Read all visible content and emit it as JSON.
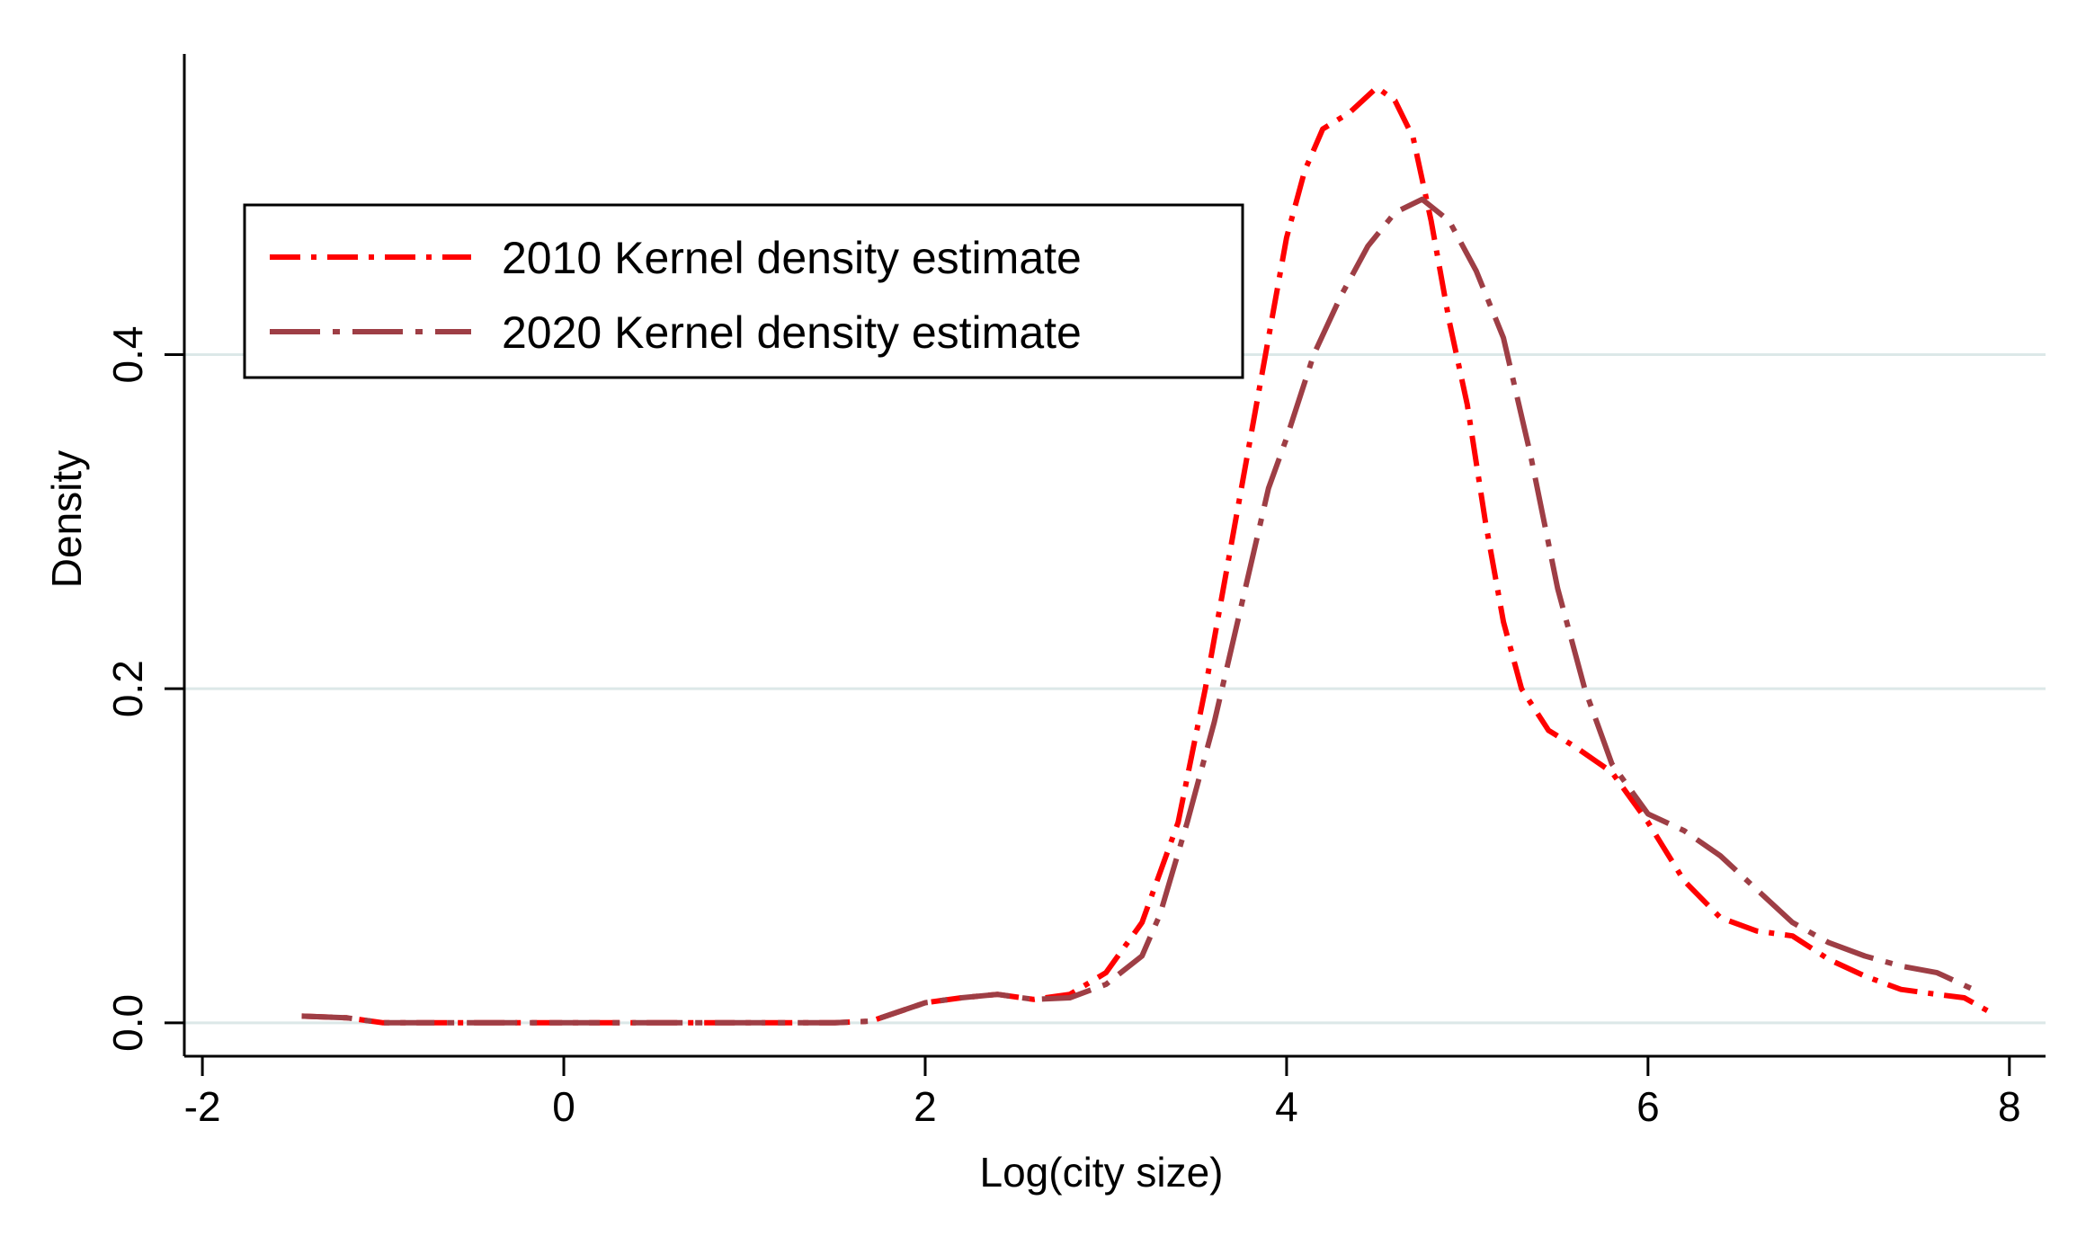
{
  "colors": {
    "background": "#ffffff",
    "gridline": "#dce8e8",
    "axis": "#000000",
    "series_2010": "#ff0000",
    "series_2020": "#9e3e45"
  },
  "chart_data": {
    "type": "line",
    "title": "",
    "xlabel": "Log(city size)",
    "ylabel": "Density",
    "xlim": [
      -2.1,
      8.2
    ],
    "ylim": [
      -0.02,
      0.58
    ],
    "xticks": [
      -2,
      0,
      2,
      4,
      6,
      8
    ],
    "xtick_labels": [
      "-2",
      "0",
      "2",
      "4",
      "6",
      "8"
    ],
    "yticks": [
      0,
      0.2,
      0.4
    ],
    "ytick_labels": [
      "0.0",
      "0.2",
      "0.4"
    ],
    "grid": "horizontal",
    "legend_position": "top-left",
    "series": [
      {
        "name": "2010 Kernel density estimate",
        "style": "dash-dot",
        "points": [
          [
            -1.45,
            0.004
          ],
          [
            -1.2,
            0.003
          ],
          [
            -1.0,
            0.0
          ],
          [
            -0.5,
            0.0
          ],
          [
            0.0,
            0.0
          ],
          [
            0.5,
            0.0
          ],
          [
            1.0,
            0.0
          ],
          [
            1.5,
            0.0
          ],
          [
            1.7,
            0.001
          ],
          [
            2.0,
            0.012
          ],
          [
            2.2,
            0.015
          ],
          [
            2.4,
            0.017
          ],
          [
            2.6,
            0.014
          ],
          [
            2.8,
            0.017
          ],
          [
            3.0,
            0.03
          ],
          [
            3.2,
            0.06
          ],
          [
            3.4,
            0.12
          ],
          [
            3.55,
            0.2
          ],
          [
            3.7,
            0.29
          ],
          [
            3.8,
            0.35
          ],
          [
            3.9,
            0.41
          ],
          [
            4.0,
            0.47
          ],
          [
            4.1,
            0.51
          ],
          [
            4.2,
            0.535
          ],
          [
            4.35,
            0.545
          ],
          [
            4.5,
            0.56
          ],
          [
            4.6,
            0.552
          ],
          [
            4.7,
            0.53
          ],
          [
            4.8,
            0.48
          ],
          [
            4.9,
            0.42
          ],
          [
            5.0,
            0.37
          ],
          [
            5.1,
            0.3
          ],
          [
            5.2,
            0.24
          ],
          [
            5.3,
            0.2
          ],
          [
            5.45,
            0.175
          ],
          [
            5.6,
            0.165
          ],
          [
            5.8,
            0.15
          ],
          [
            6.0,
            0.12
          ],
          [
            6.2,
            0.085
          ],
          [
            6.4,
            0.063
          ],
          [
            6.6,
            0.055
          ],
          [
            6.8,
            0.052
          ],
          [
            7.0,
            0.038
          ],
          [
            7.2,
            0.028
          ],
          [
            7.4,
            0.02
          ],
          [
            7.6,
            0.017
          ],
          [
            7.75,
            0.015
          ],
          [
            7.9,
            0.006
          ]
        ]
      },
      {
        "name": "2020 Kernel density estimate",
        "style": "long-dash-dot",
        "points": [
          [
            -1.45,
            0.004
          ],
          [
            -1.2,
            0.003
          ],
          [
            -1.0,
            0.0
          ],
          [
            -0.5,
            0.0
          ],
          [
            0.0,
            0.0
          ],
          [
            0.5,
            0.0
          ],
          [
            1.0,
            0.0
          ],
          [
            1.5,
            0.0
          ],
          [
            1.7,
            0.001
          ],
          [
            2.0,
            0.012
          ],
          [
            2.2,
            0.015
          ],
          [
            2.4,
            0.017
          ],
          [
            2.6,
            0.014
          ],
          [
            2.8,
            0.015
          ],
          [
            3.0,
            0.023
          ],
          [
            3.2,
            0.04
          ],
          [
            3.3,
            0.065
          ],
          [
            3.45,
            0.12
          ],
          [
            3.6,
            0.18
          ],
          [
            3.75,
            0.25
          ],
          [
            3.9,
            0.32
          ],
          [
            4.0,
            0.35
          ],
          [
            4.15,
            0.4
          ],
          [
            4.3,
            0.435
          ],
          [
            4.45,
            0.465
          ],
          [
            4.6,
            0.485
          ],
          [
            4.75,
            0.493
          ],
          [
            4.9,
            0.48
          ],
          [
            5.05,
            0.45
          ],
          [
            5.2,
            0.41
          ],
          [
            5.35,
            0.34
          ],
          [
            5.5,
            0.26
          ],
          [
            5.65,
            0.2
          ],
          [
            5.8,
            0.155
          ],
          [
            6.0,
            0.125
          ],
          [
            6.2,
            0.115
          ],
          [
            6.4,
            0.1
          ],
          [
            6.6,
            0.08
          ],
          [
            6.8,
            0.06
          ],
          [
            7.0,
            0.048
          ],
          [
            7.2,
            0.04
          ],
          [
            7.4,
            0.034
          ],
          [
            7.6,
            0.03
          ],
          [
            7.8,
            0.02
          ]
        ]
      }
    ]
  }
}
